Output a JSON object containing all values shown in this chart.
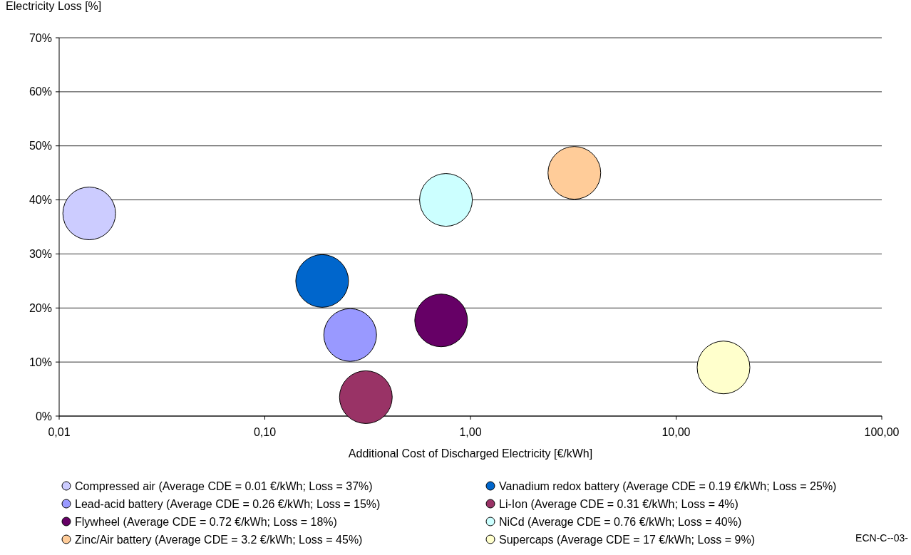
{
  "chart_data": {
    "type": "bubble",
    "ylabel": "Electricity Loss [%]",
    "xlabel": "Additional Cost of Discharged Electricity [€/kWh]",
    "log": "x",
    "xlim": [
      0.01,
      100
    ],
    "xticks": [
      {
        "value": 0.01,
        "label": "0,01"
      },
      {
        "value": 0.1,
        "label": "0,10"
      },
      {
        "value": 1,
        "label": "1,00"
      },
      {
        "value": 10,
        "label": "10,00"
      },
      {
        "value": 100,
        "label": "100,00"
      }
    ],
    "ylim": [
      0,
      70
    ],
    "yticks": [
      {
        "value": 0,
        "label": "0%"
      },
      {
        "value": 10,
        "label": "10%"
      },
      {
        "value": 20,
        "label": "20%"
      },
      {
        "value": 30,
        "label": "30%"
      },
      {
        "value": 40,
        "label": "40%"
      },
      {
        "value": 50,
        "label": "50%"
      },
      {
        "value": 60,
        "label": "60%"
      },
      {
        "value": 70,
        "label": "70%"
      }
    ],
    "grid": "y",
    "legend": "bottom",
    "annotations": [
      "ECN-C--03-"
    ],
    "series": [
      {
        "name": "Compressed air (Average CDE = 0.01 €/kWh; Loss = 37%)",
        "color": "#ccccff",
        "x": [
          0.014
        ],
        "values": [
          37.5
        ],
        "sizes": [
          1
        ]
      },
      {
        "name": "Vanadium redox battery (Average CDE = 0.19 €/kWh; Loss = 25%)",
        "color": "#0066cc",
        "x": [
          0.19
        ],
        "values": [
          25
        ],
        "sizes": [
          1
        ]
      },
      {
        "name": "Lead-acid battery (Average CDE = 0.26 €/kWh; Loss = 15%)",
        "color": "#9999ff",
        "x": [
          0.26
        ],
        "values": [
          15
        ],
        "sizes": [
          1
        ]
      },
      {
        "name": "Li-Ion (Average CDE = 0.31 €/kWh; Loss = 4%)",
        "color": "#993366",
        "x": [
          0.31
        ],
        "values": [
          3.5
        ],
        "sizes": [
          1
        ]
      },
      {
        "name": "Flywheel (Average CDE = 0.72 €/kWh; Loss = 18%)",
        "color": "#660066",
        "x": [
          0.72
        ],
        "values": [
          17.7
        ],
        "sizes": [
          1
        ]
      },
      {
        "name": "NiCd (Average CDE = 0.76 €/kWh; Loss = 40%)",
        "color": "#ccffff",
        "x": [
          0.76
        ],
        "values": [
          40
        ],
        "sizes": [
          1
        ]
      },
      {
        "name": "Zinc/Air battery (Average CDE = 3.2 €/kWh; Loss = 45%)",
        "color": "#ffcc99",
        "x": [
          3.2
        ],
        "values": [
          45
        ],
        "sizes": [
          1
        ]
      },
      {
        "name": "Supercaps (Average CDE = 17 €/kWh; Loss = 9%)",
        "color": "#ffffcc",
        "x": [
          17
        ],
        "values": [
          9
        ],
        "sizes": [
          1
        ]
      }
    ]
  }
}
